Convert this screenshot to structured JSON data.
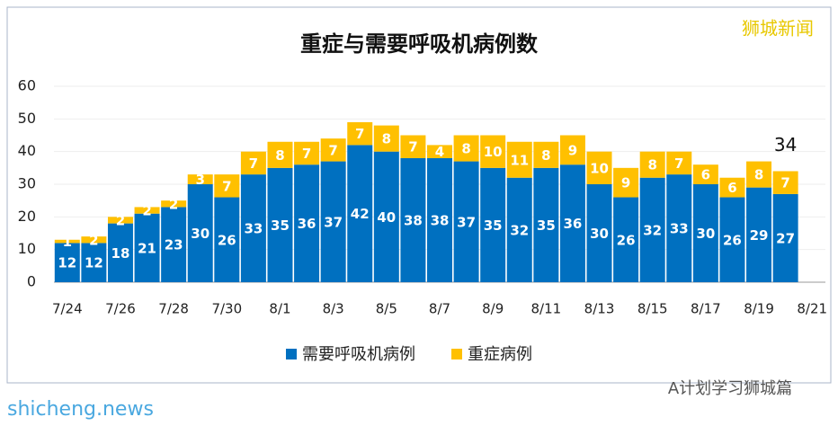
{
  "chart_data": {
    "type": "stacked_bar",
    "title": "重症与需要呼吸机病例数",
    "categories": [
      "7/24",
      null,
      "7/26",
      null,
      "7/28",
      null,
      "7/30",
      null,
      "8/1",
      null,
      "8/3",
      null,
      "8/5",
      null,
      "8/7",
      null,
      "8/9",
      null,
      "8/11",
      null,
      "8/13",
      null,
      "8/15",
      null,
      "8/17",
      null,
      "8/19",
      null,
      "8/21"
    ],
    "series": [
      {
        "name": "需要呼吸机病例",
        "color": "#0070c0",
        "values": [
          12,
          12,
          18,
          21,
          23,
          30,
          26,
          33,
          35,
          36,
          37,
          42,
          40,
          38,
          38,
          37,
          35,
          32,
          35,
          36,
          30,
          26,
          32,
          33,
          30,
          26,
          29,
          27,
          null
        ]
      },
      {
        "name": "重症病例",
        "color": "#ffc000",
        "values": [
          1,
          2,
          2,
          2,
          2,
          3,
          7,
          7,
          8,
          7,
          7,
          7,
          8,
          7,
          4,
          8,
          10,
          11,
          8,
          9,
          10,
          9,
          8,
          7,
          6,
          6,
          8,
          7,
          null
        ]
      }
    ],
    "annotations": [
      "34"
    ],
    "ylim": [
      0,
      60
    ],
    "yticks": [
      0,
      10,
      20,
      30,
      40,
      50,
      60
    ],
    "grid": true,
    "legend": "bottom",
    "watermarks": [
      "狮城新闻",
      "A计划学习狮城篇",
      "shicheng.news"
    ]
  }
}
